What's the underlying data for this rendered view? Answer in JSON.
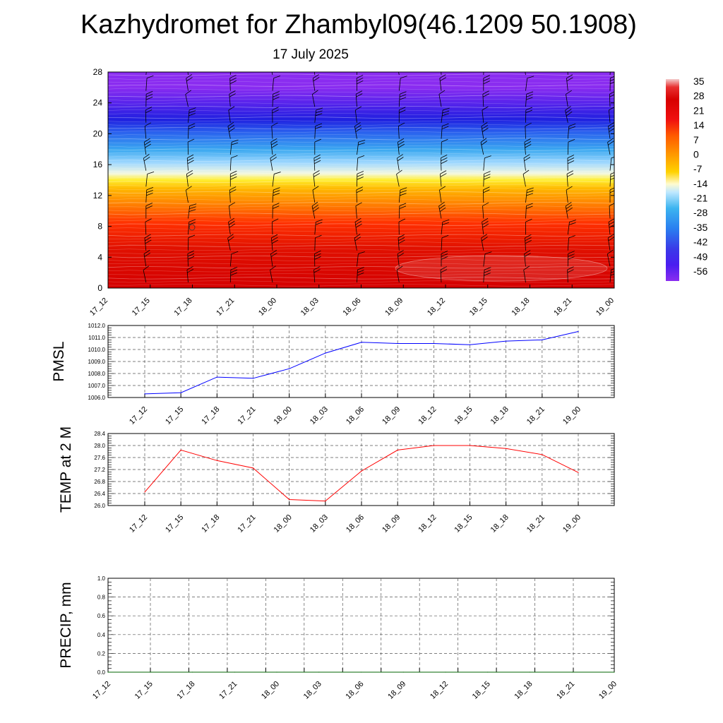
{
  "title": "Kazhydromet for Zhambyl09(46.1209 50.1908)",
  "subtitle": "17 July 2025",
  "time_labels": [
    "17_12",
    "17_15",
    "17_18",
    "17_21",
    "18_00",
    "18_03",
    "18_06",
    "18_09",
    "18_12",
    "18_15",
    "18_18",
    "18_21",
    "19_00"
  ],
  "colorbar": {
    "labels": [
      "35",
      "28",
      "21",
      "14",
      "7",
      "0",
      "-7",
      "-14",
      "-21",
      "-28",
      "-35",
      "-42",
      "-49",
      "-56"
    ],
    "stops": [
      "#f4cccc",
      "#e80000",
      "#d70000",
      "#f01010",
      "#ff5a00",
      "#ff9d00",
      "#ffd200",
      "#fff9a0",
      "#bfe8ff",
      "#3cb4f0",
      "#2a7ff0",
      "#3a3ae8",
      "#4a1ef0",
      "#8a2cf0"
    ]
  },
  "chart_data": [
    {
      "type": "heatmap",
      "name": "temperature-profile",
      "x": [
        "17_12",
        "17_15",
        "17_18",
        "17_21",
        "18_00",
        "18_03",
        "18_06",
        "18_09",
        "18_12",
        "18_15",
        "18_18",
        "18_21",
        "19_00"
      ],
      "y_ticks": [
        "0",
        "4",
        "8",
        "12",
        "16",
        "20",
        "24",
        "28"
      ],
      "ylim": [
        0,
        28
      ],
      "value_range": [
        -56,
        35
      ],
      "grid": false
    },
    {
      "type": "line",
      "name": "pmsl",
      "ylabel": "PMSL",
      "x": [
        "17_12",
        "17_15",
        "17_18",
        "17_21",
        "18_00",
        "18_03",
        "18_06",
        "18_09",
        "18_12",
        "18_15",
        "18_18",
        "18_21",
        "19_00"
      ],
      "values": [
        1006.3,
        1006.4,
        1007.7,
        1007.6,
        1008.4,
        1009.7,
        1010.6,
        1010.5,
        1010.5,
        1010.4,
        1010.7,
        1010.8,
        1011.5
      ],
      "y_ticks": [
        "1006.0",
        "1007.0",
        "1008.0",
        "1009.0",
        "1010.0",
        "1011.0",
        "1012.0"
      ],
      "ylim": [
        1006.0,
        1012.0
      ],
      "color": "#0000ff",
      "grid": true
    },
    {
      "type": "line",
      "name": "temp-2m",
      "ylabel": "TEMP at 2 M",
      "x": [
        "17_12",
        "17_15",
        "17_18",
        "17_21",
        "18_00",
        "18_03",
        "18_06",
        "18_09",
        "18_12",
        "18_15",
        "18_18",
        "18_21",
        "19_00"
      ],
      "values": [
        26.45,
        27.85,
        27.5,
        27.25,
        26.2,
        26.15,
        27.15,
        27.85,
        28.0,
        28.0,
        27.9,
        27.7,
        27.1
      ],
      "y_ticks": [
        "26.0",
        "26.4",
        "26.8",
        "27.2",
        "27.6",
        "28.0",
        "28.4"
      ],
      "ylim": [
        26.0,
        28.4
      ],
      "color": "#ff0000",
      "grid": true
    },
    {
      "type": "line",
      "name": "precip",
      "ylabel": "PRECIP, mm",
      "x": [
        "17_12",
        "17_15",
        "17_18",
        "17_21",
        "18_00",
        "18_03",
        "18_06",
        "18_09",
        "18_12",
        "18_15",
        "18_18",
        "18_21",
        "19_00"
      ],
      "values": [
        0,
        0,
        0,
        0,
        0,
        0,
        0,
        0,
        0,
        0,
        0,
        0,
        0
      ],
      "y_ticks": [
        "0.0",
        "0.2",
        "0.4",
        "0.6",
        "0.8",
        "1.0"
      ],
      "ylim": [
        0.0,
        1.0
      ],
      "color": "#006400",
      "grid": true
    }
  ]
}
